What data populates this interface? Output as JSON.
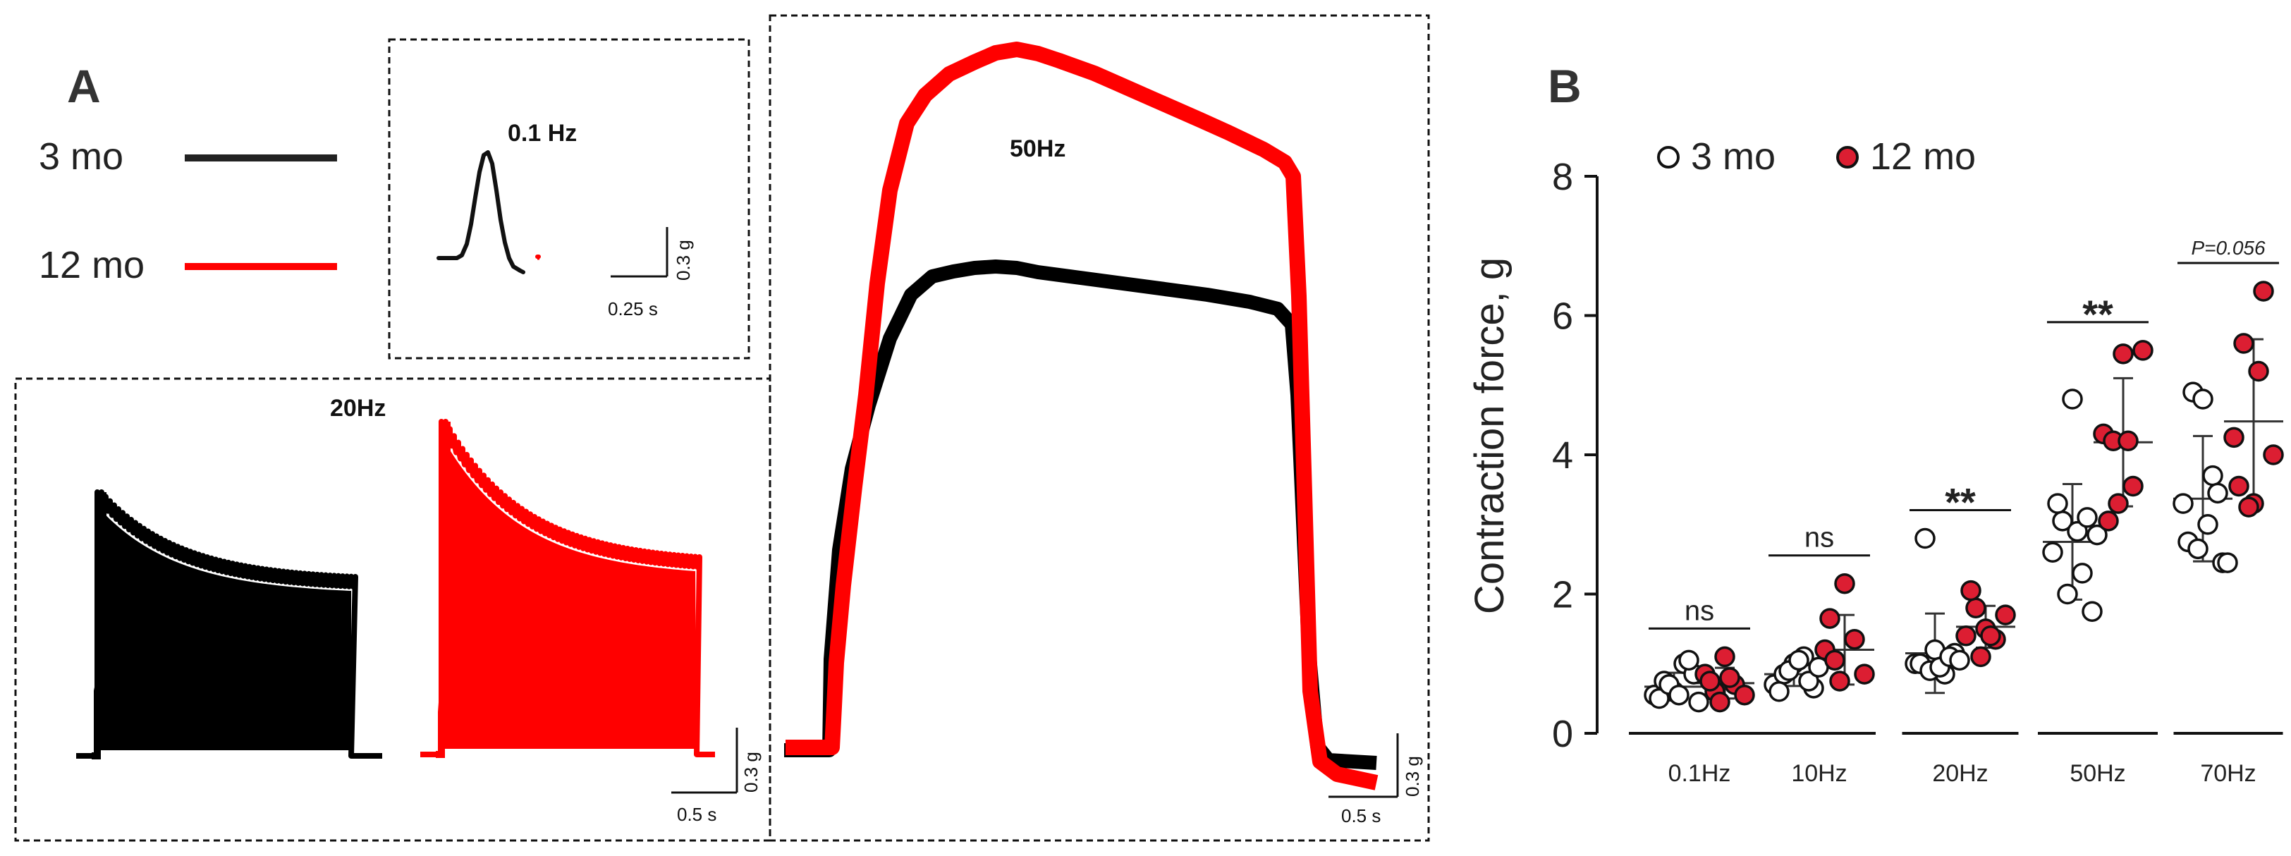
{
  "panel_a": {
    "label": "A",
    "legend": {
      "groups": [
        "3 mo",
        "12 mo"
      ],
      "colors": [
        "#000000",
        "#ff0000"
      ]
    },
    "insets": [
      {
        "freq": "0.1 Hz",
        "scale_force": "0.3 g",
        "scale_time": "0.25 s"
      },
      {
        "freq": "20Hz",
        "scale_force": "0.3 g",
        "scale_time": "0.5 s"
      },
      {
        "freq": "50Hz",
        "scale_force": "0.3 g",
        "scale_time": "0.5 s"
      }
    ]
  },
  "chart_data": {
    "type": "scatter",
    "title": "B",
    "xlabel": "",
    "ylabel": "Contraction force, g",
    "ylim": [
      0,
      8
    ],
    "yticks": [
      0,
      2,
      4,
      6,
      8
    ],
    "legend_position": "top",
    "categories": [
      "0.1Hz",
      "10Hz",
      "20Hz",
      "50Hz",
      "70Hz"
    ],
    "series": [
      {
        "name": "3 mo",
        "marker": "open circle",
        "color": "#ffffff",
        "points": [
          [
            0.55,
            0.75,
            0.6,
            1.0,
            0.85,
            0.5,
            0.7,
            0.55,
            1.05,
            0.45
          ],
          [
            0.7,
            0.85,
            1.0,
            1.1,
            0.65,
            0.6,
            0.9,
            1.05,
            0.75,
            0.95
          ],
          [
            1.0,
            2.8,
            1.2,
            0.85,
            1.15,
            1.0,
            0.9,
            0.95,
            1.1,
            1.05
          ],
          [
            2.6,
            3.05,
            4.8,
            2.3,
            1.75,
            3.3,
            2.0,
            2.9,
            3.1,
            2.85
          ],
          [
            3.3,
            4.9,
            4.8,
            3.7,
            2.45,
            2.75,
            2.65,
            3.0,
            3.45,
            2.45
          ]
        ],
        "mean": [
          0.67,
          0.85,
          1.15,
          2.75,
          3.37
        ],
        "sd": [
          0.2,
          0.17,
          0.57,
          0.83,
          0.9
        ]
      },
      {
        "name": "12 mo",
        "marker": "filled circle",
        "color": "#dc1e32",
        "points": [
          [
            0.85,
            0.6,
            1.1,
            0.7,
            0.55,
            0.75,
            0.45,
            0.8
          ],
          [
            1.2,
            1.05,
            2.15,
            1.35,
            0.85,
            1.65,
            0.75
          ],
          [
            1.4,
            1.8,
            1.5,
            1.35,
            1.7,
            2.05,
            1.1,
            1.4
          ],
          [
            4.3,
            4.2,
            5.45,
            3.55,
            5.5,
            3.05,
            3.3,
            4.2
          ],
          [
            4.25,
            5.6,
            3.3,
            6.35,
            4.0,
            3.55,
            3.25,
            5.2
          ]
        ],
        "mean": [
          0.72,
          1.2,
          1.53,
          4.18,
          4.48
        ],
        "sd": [
          0.22,
          0.5,
          0.3,
          0.92,
          1.18
        ]
      }
    ],
    "annotations": [
      {
        "category": "0.1Hz",
        "text": "ns",
        "italic": false
      },
      {
        "category": "10Hz",
        "text": "ns",
        "italic": false
      },
      {
        "category": "20Hz",
        "text": "**",
        "italic": false
      },
      {
        "category": "50Hz",
        "text": "**",
        "italic": false
      },
      {
        "category": "70Hz",
        "text": "P=0.056",
        "italic": true
      }
    ]
  }
}
